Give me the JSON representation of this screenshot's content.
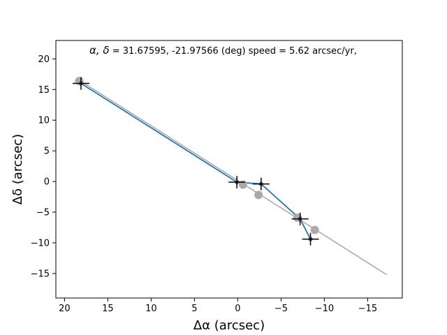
{
  "chart_data": {
    "type": "scatter",
    "annotation": {
      "symbol": "α, δ",
      "text": " = 31.67595, -21.97566 (deg)    speed = 5.62 arcsec/yr,"
    },
    "xlabel": "Δα (arcsec)",
    "ylabel": "Δδ (arcsec)",
    "xlim": [
      21,
      -19
    ],
    "ylim": [
      -19,
      23
    ],
    "x_ticks": [
      20,
      15,
      10,
      5,
      0,
      -5,
      -10,
      -15
    ],
    "x_tick_labels": [
      "20",
      "15",
      "10",
      "5",
      "0",
      "−5",
      "−10",
      "−15"
    ],
    "y_ticks": [
      20,
      15,
      10,
      5,
      0,
      -5,
      -10,
      -15
    ],
    "y_tick_labels": [
      "20",
      "15",
      "10",
      "5",
      "0",
      "−5",
      "−10",
      "−15"
    ],
    "grid": false,
    "series": [
      {
        "kind": "model-line",
        "color": "#aaaaaa",
        "x": [
          18.4,
          -17.2
        ],
        "y": [
          16.6,
          -15.2
        ]
      },
      {
        "kind": "observed-path",
        "color": "#1f77b4",
        "x": [
          18.1,
          0.1,
          -2.7,
          -7.2,
          -8.4
        ],
        "y": [
          16.0,
          -0.1,
          -0.4,
          -6.1,
          -9.4
        ]
      },
      {
        "kind": "model-points",
        "color": "#aaaaaa",
        "x": [
          18.3,
          -0.6,
          -2.4,
          -6.9,
          -8.9
        ],
        "y": [
          16.4,
          -0.5,
          -2.2,
          -5.9,
          -7.9
        ]
      },
      {
        "kind": "observed-points",
        "color": "#000000",
        "marker": "cross",
        "x": [
          18.1,
          0.1,
          -2.7,
          -7.2,
          -8.4
        ],
        "y": [
          16.0,
          -0.1,
          -0.4,
          -6.1,
          -9.4
        ]
      }
    ]
  }
}
